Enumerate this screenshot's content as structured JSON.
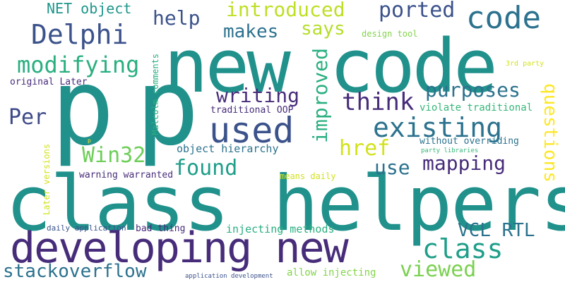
{
  "words": [
    {
      "text": "class helpers",
      "color": "#21918c"
    },
    {
      "text": "new code",
      "color": "#21918c"
    },
    {
      "text": "p",
      "color": "#21918c"
    },
    {
      "text": "p",
      "color": "#21918c"
    },
    {
      "text": "developing new",
      "color": "#472c7a"
    },
    {
      "text": "code",
      "color": "#2c728e"
    },
    {
      "text": "used",
      "color": "#3b528b"
    },
    {
      "text": "existing",
      "color": "#2c728e"
    },
    {
      "text": "Delphi",
      "color": "#3b528b"
    },
    {
      "text": "class",
      "color": "#1f9e89"
    },
    {
      "text": "ported",
      "color": "#3b528b"
    },
    {
      "text": "introduced",
      "color": "#bddf26"
    },
    {
      "text": "help",
      "color": "#3b528b"
    },
    {
      "text": "modifying",
      "color": "#29af7f"
    },
    {
      "text": "makes",
      "color": "#2c728e"
    },
    {
      "text": "says",
      "color": "#b5de2b"
    },
    {
      "text": "purposes",
      "color": "#2c728e"
    },
    {
      "text": "think",
      "color": "#472c7a"
    },
    {
      "text": "writing",
      "color": "#472c7a"
    },
    {
      "text": "improved",
      "color": "#29af7f"
    },
    {
      "text": "questions",
      "color": "#fde725"
    },
    {
      "text": "href",
      "color": "#d2e21b"
    },
    {
      "text": "Per",
      "color": "#3e4989"
    },
    {
      "text": "Win32",
      "color": "#6ece58"
    },
    {
      "text": "found",
      "color": "#1f9e89"
    },
    {
      "text": "use",
      "color": "#2c728e"
    },
    {
      "text": "mapping",
      "color": "#472c7a"
    },
    {
      "text": "VCL RTL",
      "color": "#2c728e"
    },
    {
      "text": "stackoverflow",
      "color": "#2c728e"
    },
    {
      "text": "viewed",
      "color": "#7ad151"
    },
    {
      "text": "NET object",
      "color": "#1f968b"
    },
    {
      "text": "Malcolm comments",
      "color": "#29af7f"
    },
    {
      "text": "traditional OOP",
      "color": "#472c7a"
    },
    {
      "text": "violate traditional",
      "color": "#35b779"
    },
    {
      "text": "object hierarchy",
      "color": "#2c728e"
    },
    {
      "text": "without overriding",
      "color": "#2c728e"
    },
    {
      "text": "original Later",
      "color": "#472c7a"
    },
    {
      "text": "design tool",
      "color": "#84d44b"
    },
    {
      "text": "3rd party",
      "color": "#d2e21b"
    },
    {
      "text": "party libraries",
      "color": "#35b779"
    },
    {
      "text": "warning warranted",
      "color": "#472c7a"
    },
    {
      "text": "means daily",
      "color": "#d2e21b"
    },
    {
      "text": "Later versions",
      "color": "#d2e21b"
    },
    {
      "text": "daily application",
      "color": "#3b528b"
    },
    {
      "text": "bad thing",
      "color": "#472c7a"
    },
    {
      "text": "injecting methods",
      "color": "#29af7f"
    },
    {
      "text": "allow injecting",
      "color": "#84d44b"
    },
    {
      "text": "application development",
      "color": "#3b528b"
    },
    {
      "text": "p",
      "color": "#fde725"
    }
  ]
}
